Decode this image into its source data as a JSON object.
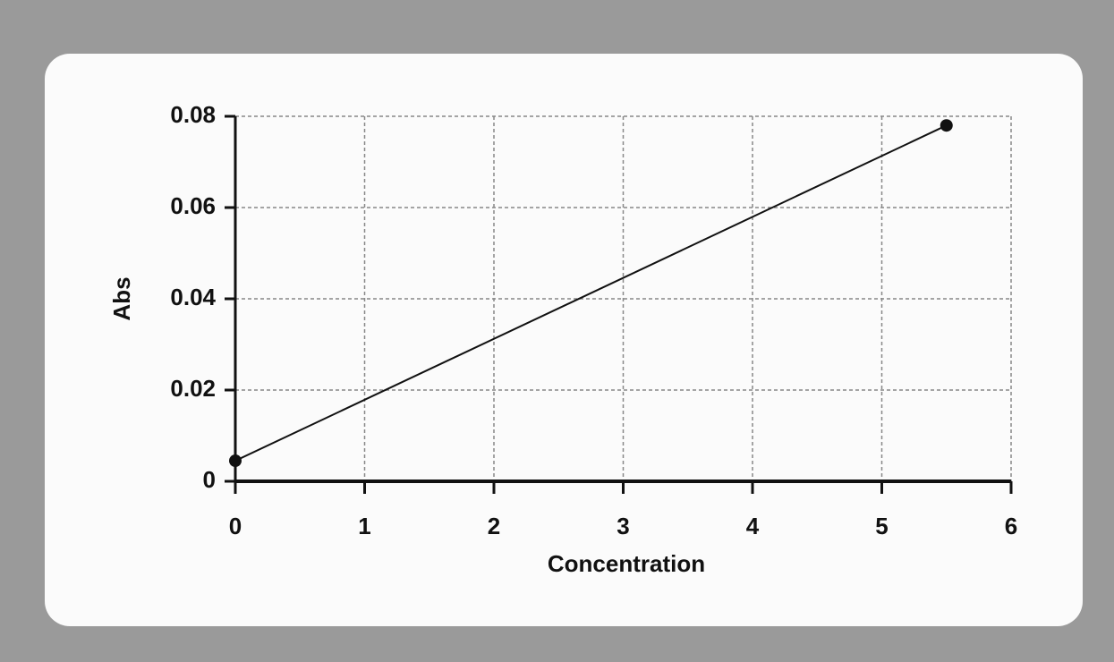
{
  "chart_data": {
    "type": "line",
    "x": [
      0,
      5.5
    ],
    "series": [
      {
        "values": [
          0.0045,
          0.078
        ],
        "color": "#111111"
      }
    ],
    "xlabel": "Concentration",
    "ylabel": "Abs",
    "xlim": [
      0,
      6
    ],
    "xticks": [
      0,
      1,
      2,
      3,
      4,
      5,
      6
    ],
    "ylim": [
      0,
      0.08
    ],
    "yticks": [
      0,
      0.02,
      0.04,
      0.06,
      0.08
    ],
    "grid": true
  }
}
